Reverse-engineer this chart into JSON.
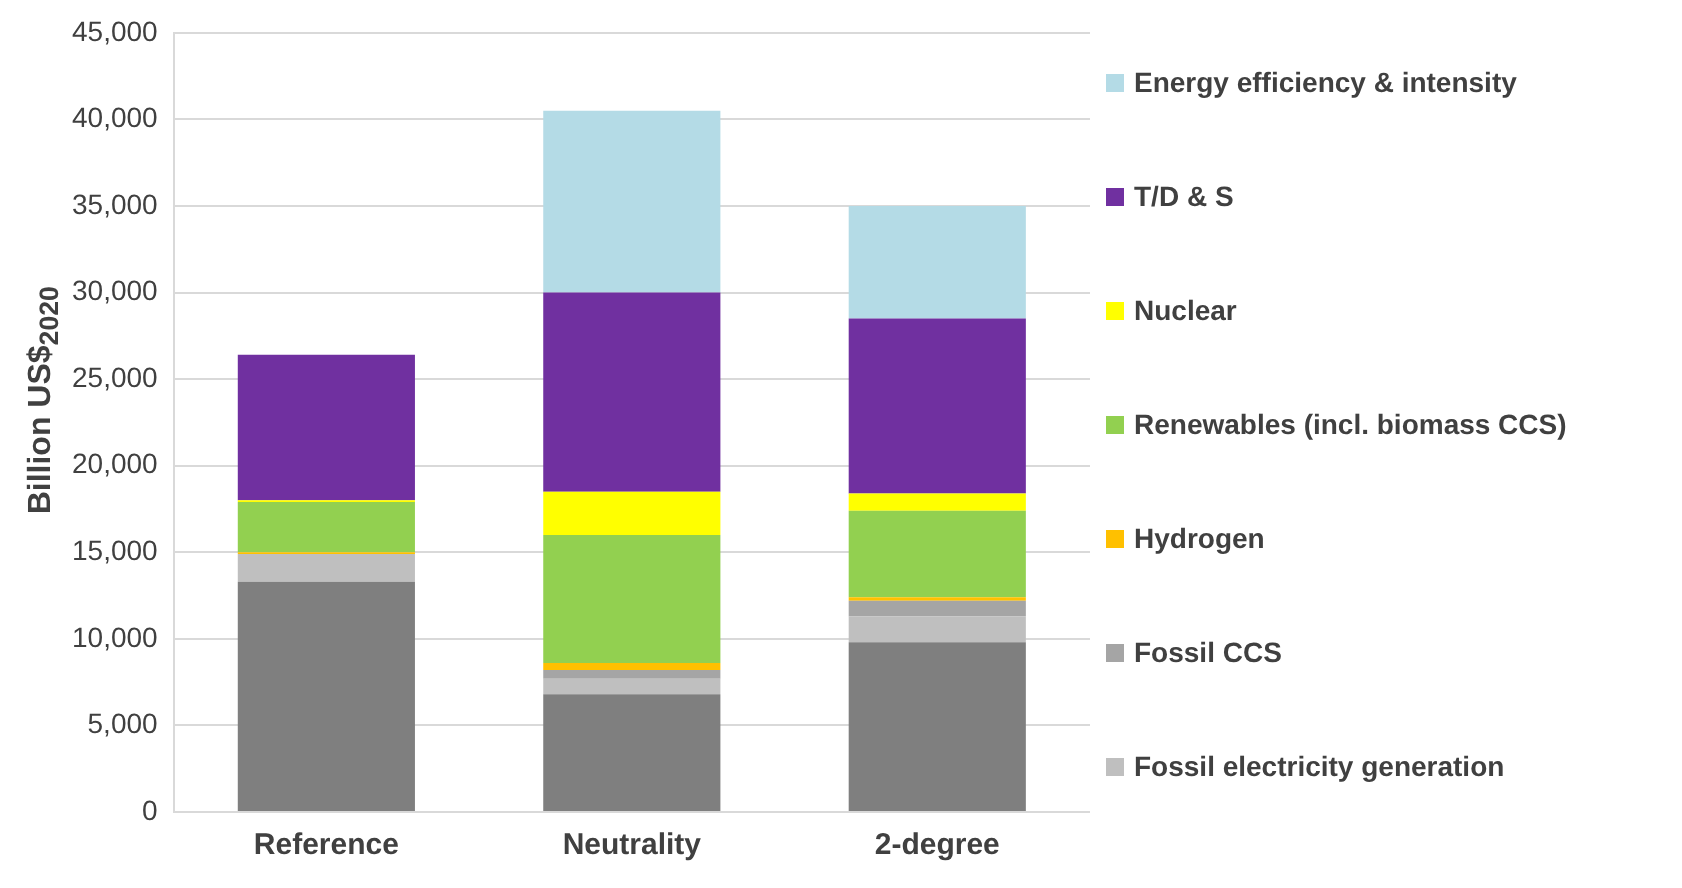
{
  "chart_data": {
    "type": "bar",
    "stacked": true,
    "ylabel": "Billion US$$_{2020}$",
    "categories": [
      "Reference",
      "Neutrality",
      "2-degree"
    ],
    "series": [
      {
        "color": "#7f7f7f",
        "values": [
          13300,
          6800,
          9800
        ]
      },
      {
        "name": "Fossil electricity generation",
        "color": "#bfbfbf",
        "values": [
          1600,
          900,
          1500
        ]
      },
      {
        "name": "Fossil CCS",
        "color": "#a5a5a5",
        "values": [
          0,
          500,
          900
        ]
      },
      {
        "name": "Hydrogen",
        "color": "#ffc000",
        "values": [
          100,
          400,
          200
        ]
      },
      {
        "name": "Renewables (incl. biomass CCS)",
        "color": "#92d050",
        "values": [
          2900,
          7400,
          5000
        ]
      },
      {
        "name": "Nuclear",
        "color": "#ffff00",
        "values": [
          100,
          2500,
          1000
        ]
      },
      {
        "name": "T/D & S",
        "color": "#7030a0",
        "values": [
          8400,
          11500,
          10100
        ]
      },
      {
        "name": "Energy efficiency & intensity",
        "color": "#b4dbe6",
        "values": [
          0,
          10500,
          6500
        ]
      }
    ],
    "ylim": [
      0,
      45000
    ],
    "yticks": [
      {
        "value": 0,
        "label": "0"
      },
      {
        "value": 5000,
        "label": "5,000"
      },
      {
        "value": 10000,
        "label": "10,000"
      },
      {
        "value": 15000,
        "label": "15,000"
      },
      {
        "value": 20000,
        "label": "20,000"
      },
      {
        "value": 25000,
        "label": "25,000"
      },
      {
        "value": 30000,
        "label": "30,000"
      },
      {
        "value": 35000,
        "label": "35,000"
      },
      {
        "value": 40000,
        "label": "40,000"
      },
      {
        "value": 45000,
        "label": "45,000"
      }
    ],
    "grid": "y",
    "legend": "right"
  }
}
